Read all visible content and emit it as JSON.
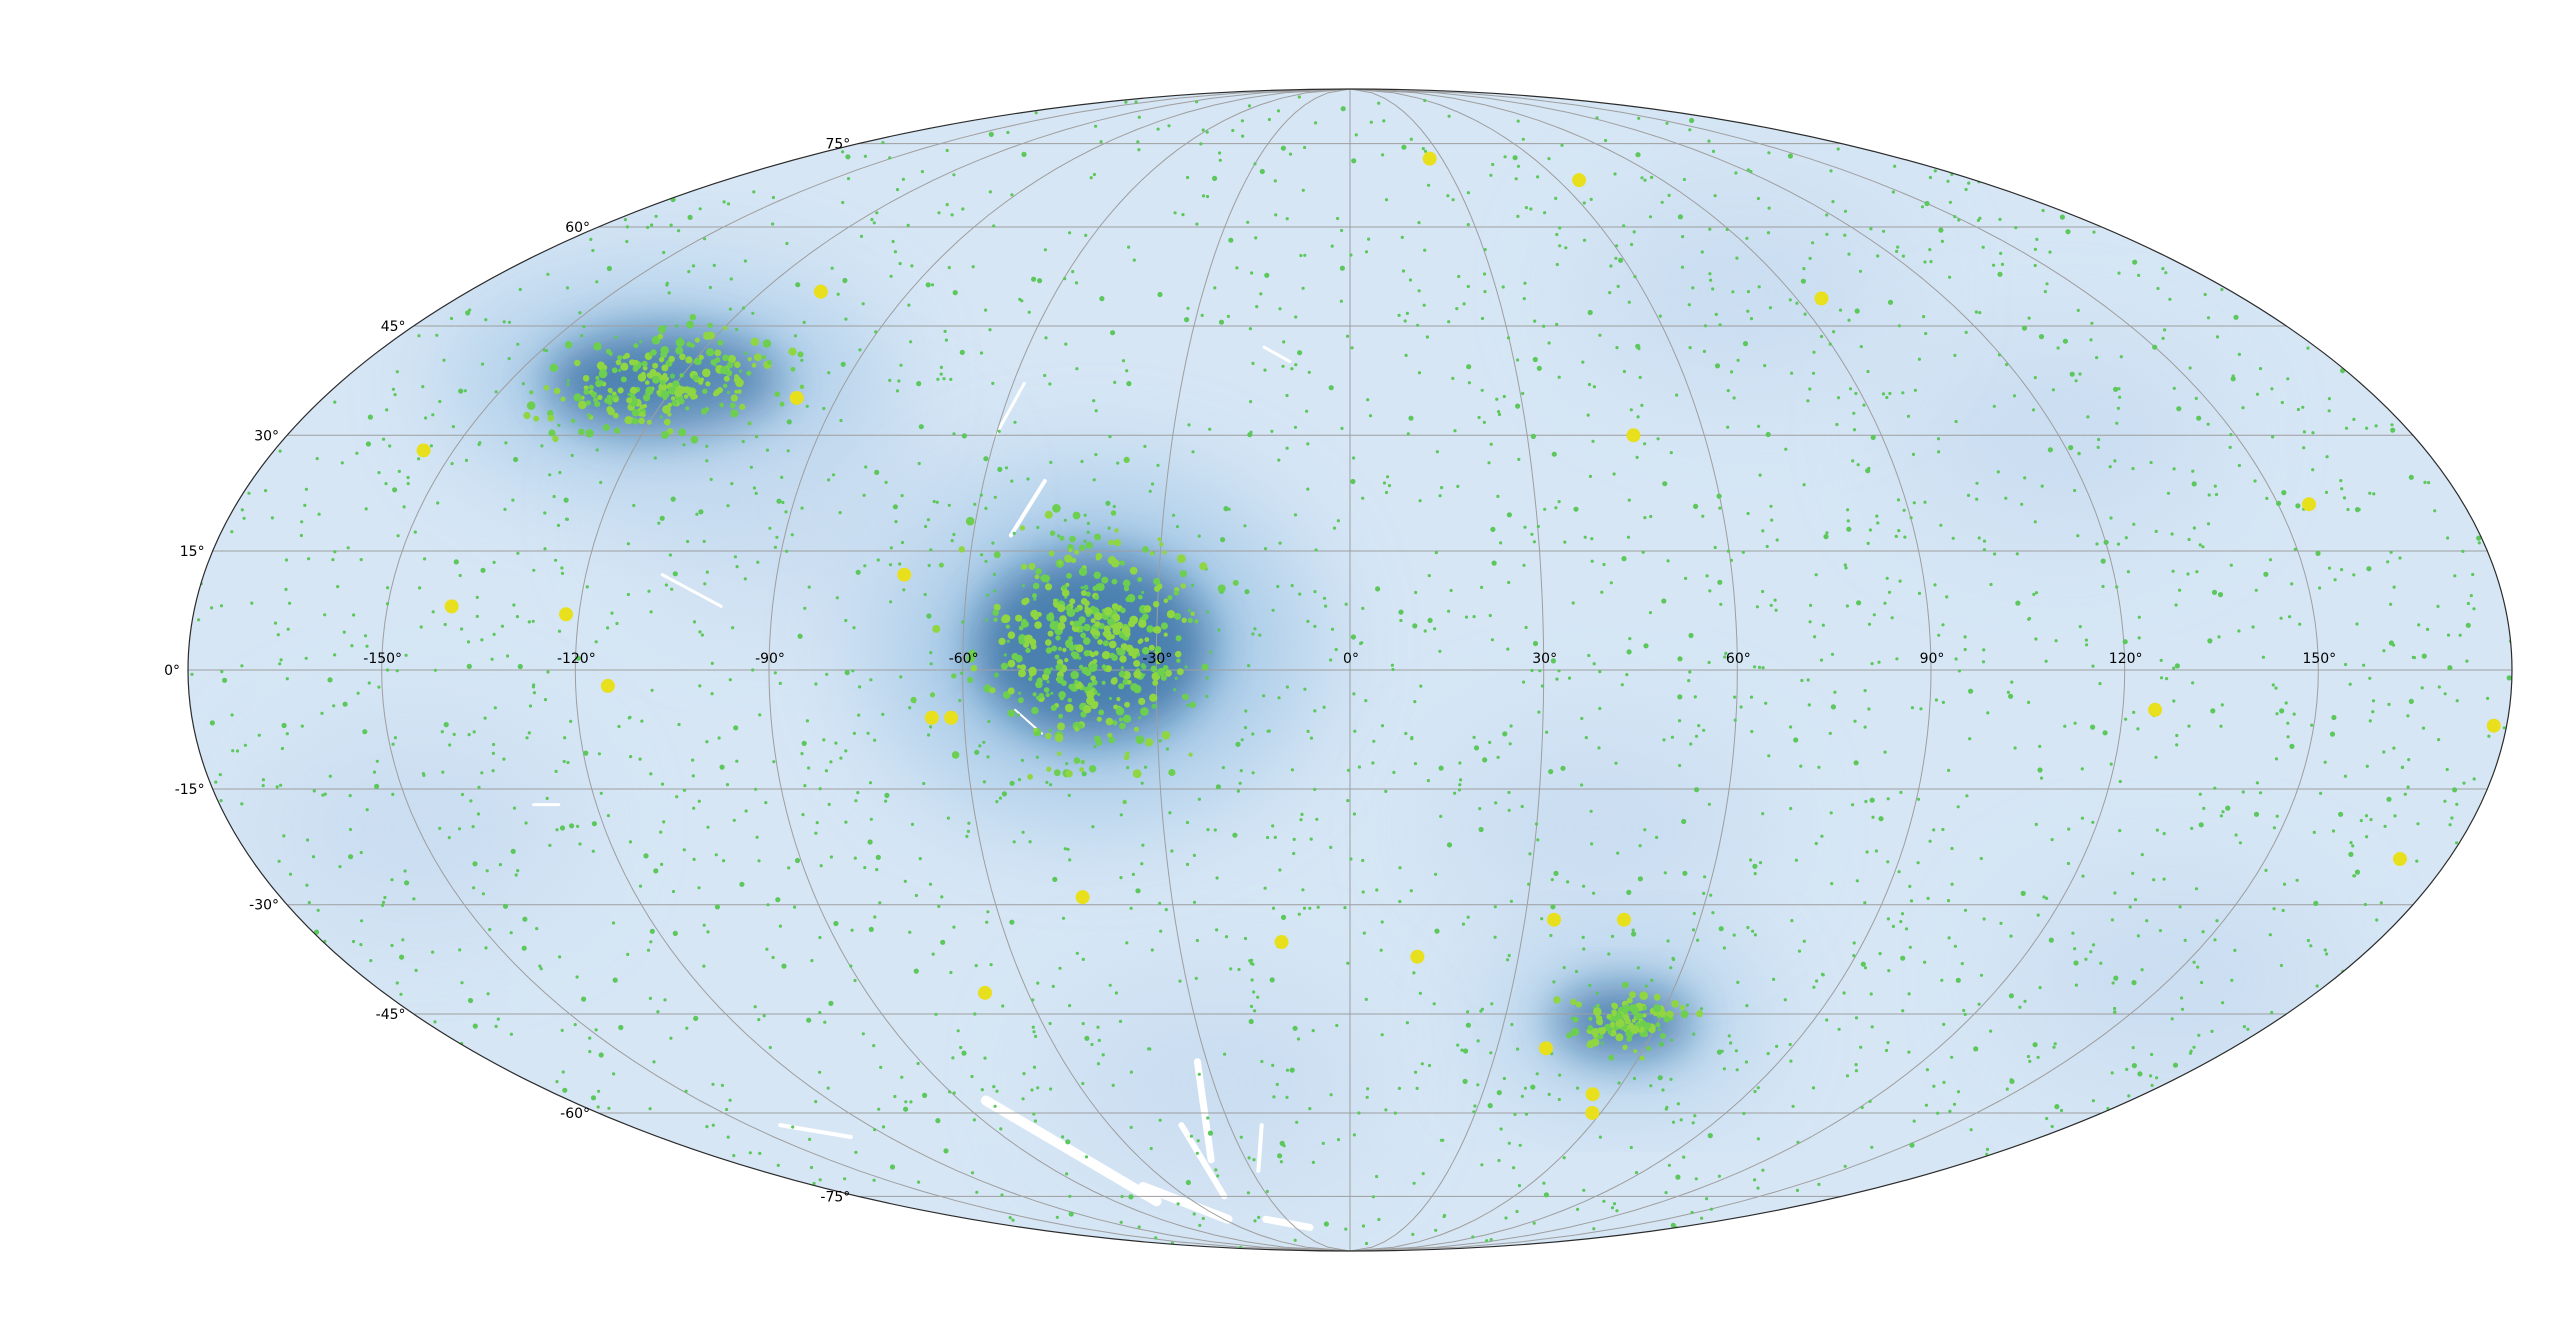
{
  "chart_data": {
    "type": "scatter",
    "projection": "mollweide",
    "grid": true,
    "background_color": "#d6e6f5",
    "density_color_dark": "#0b4f8a",
    "point_color_small": "#5cc85c",
    "point_color_large": "#e8e01c",
    "xlim": [
      -180,
      180
    ],
    "ylim": [
      -90,
      90
    ],
    "x_ticks": [
      -150,
      -120,
      -90,
      -60,
      -30,
      0,
      30,
      60,
      90,
      120,
      150
    ],
    "y_ticks": [
      -75,
      -60,
      -45,
      -30,
      -15,
      0,
      15,
      30,
      45,
      60,
      75
    ],
    "x_tick_labels": [
      "-150°",
      "-120°",
      "-90°",
      "-60°",
      "-30°",
      "0°",
      "30°",
      "60°",
      "90°",
      "120°",
      "150°"
    ],
    "y_tick_labels": [
      "-75°",
      "-60°",
      "-45°",
      "-30°",
      "-15°",
      "0°",
      "15°",
      "30°",
      "45°",
      "60°",
      "75°"
    ],
    "clusters": [
      {
        "lon": -40,
        "lat": 3,
        "spread_lon": 8,
        "spread_lat": 7,
        "count": 420
      },
      {
        "lon": -122,
        "lat": 37,
        "spread_lon": 9,
        "spread_lat": 3.5,
        "count": 230
      },
      {
        "lon": 53,
        "lat": -46,
        "spread_lon": 5,
        "spread_lat": 2,
        "count": 110
      }
    ],
    "background_points": 2600,
    "bright_points": [
      {
        "lon": -155,
        "lat": 28
      },
      {
        "lon": -140,
        "lat": 8
      },
      {
        "lon": -122,
        "lat": 7
      },
      {
        "lon": -108,
        "lat": 50
      },
      {
        "lon": -97,
        "lat": 35
      },
      {
        "lon": -115,
        "lat": -2
      },
      {
        "lon": -65,
        "lat": -6
      },
      {
        "lon": -62,
        "lat": -6
      },
      {
        "lon": -45,
        "lat": -29
      },
      {
        "lon": -68,
        "lat": -42
      },
      {
        "lon": -12,
        "lat": -35
      },
      {
        "lon": 12,
        "lat": -37
      },
      {
        "lon": 35,
        "lat": -32
      },
      {
        "lon": 47,
        "lat": -32
      },
      {
        "lon": 48,
        "lat": 30
      },
      {
        "lon": 26,
        "lat": 72
      },
      {
        "lon": 66,
        "lat": 68
      },
      {
        "lon": 95,
        "lat": 49
      },
      {
        "lon": 125,
        "lat": -5
      },
      {
        "lon": 155,
        "lat": 21
      },
      {
        "lon": 178,
        "lat": -7
      },
      {
        "lon": 172,
        "lat": -24
      },
      {
        "lon": 40,
        "lat": -50
      },
      {
        "lon": 58,
        "lat": -60
      },
      {
        "lon": 55,
        "lat": -57
      },
      {
        "lon": -70,
        "lat": 12
      }
    ]
  }
}
